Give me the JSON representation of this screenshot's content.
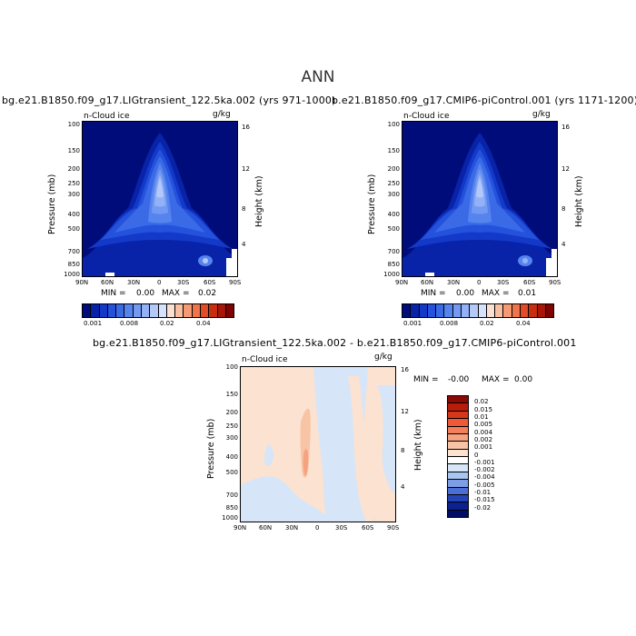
{
  "figure_title": "ANN",
  "panel1": {
    "title": "bg.e21.B1850.f09_g17.LIGtransient_122.5ka.002 (yrs 971-1000)",
    "variable": "n-Cloud ice",
    "units": "g/kg",
    "min_label": "MIN =",
    "min_value": "0.00",
    "max_label": "MAX =",
    "max_value": "0.02",
    "colorbar_labels": [
      "0.001",
      "0.008",
      "0.02",
      "0.04"
    ]
  },
  "panel2": {
    "title": "b.e21.B1850.f09_g17.CMIP6-piControl.001 (yrs 1171-1200)",
    "variable": "n-Cloud ice",
    "units": "g/kg",
    "min_label": "MIN =",
    "min_value": "0.00",
    "max_label": "MAX =",
    "max_value": "0.01",
    "colorbar_labels": [
      "0.001",
      "0.008",
      "0.02",
      "0.04"
    ]
  },
  "panel3": {
    "title": "bg.e21.B1850.f09_g17.LIGtransient_122.5ka.002 - b.e21.B1850.f09_g17.CMIP6-piControl.001",
    "variable": "n-Cloud ice",
    "units": "g/kg",
    "min_label": "MIN =",
    "min_value": "-0.00",
    "max_label": "MAX =",
    "max_value": "0.00",
    "colorbar_labels": [
      "0.02",
      "0.015",
      "0.01",
      "0.005",
      "0.004",
      "0.002",
      "0.001",
      "0",
      "-0.001",
      "-0.002",
      "-0.004",
      "-0.005",
      "-0.01",
      "-0.015",
      "-0.02"
    ]
  },
  "axes": {
    "ylabel_left": "Pressure (mb)",
    "ylabel_right": "Height (km)",
    "pressure_ticks": [
      "100",
      "150",
      "200",
      "250",
      "300",
      "400",
      "500",
      "700",
      "850",
      "1000"
    ],
    "height_ticks": [
      "16",
      "12",
      "8",
      "4"
    ],
    "lat_ticks": [
      "90N",
      "60N",
      "30N",
      "0",
      "30S",
      "60S",
      "90S"
    ]
  },
  "chart_data": [
    {
      "type": "heatmap",
      "title": "bg.e21.B1850.f09_g17.LIGtransient_122.5ka.002 (yrs 971-1000)",
      "variable": "n-Cloud ice (g/kg)",
      "xlabel": "",
      "ylabel": "Pressure (mb)",
      "ylabel_right": "Height (km)",
      "x_ticks": [
        "90N",
        "60N",
        "30N",
        "0",
        "30S",
        "60S",
        "90S"
      ],
      "y_ticks": [
        100,
        150,
        200,
        250,
        300,
        400,
        500,
        700,
        850,
        1000
      ],
      "min": 0.0,
      "max": 0.02,
      "levels": [
        0.001,
        0.002,
        0.003,
        0.004,
        0.005,
        0.006,
        0.007,
        0.008,
        0.01,
        0.012,
        0.015,
        0.02,
        0.025,
        0.03,
        0.035,
        0.04,
        0.045,
        0.05
      ],
      "colors": [
        "#000c7a",
        "#0822a8",
        "#1339c8",
        "#2452dc",
        "#3a6ae6",
        "#5684ee",
        "#7399f2",
        "#92b1f6",
        "#b4c9f8",
        "#d6e1fb",
        "#fbe0d0",
        "#f8bfa0",
        "#f59a72",
        "#f07449",
        "#e04c25",
        "#c82d10",
        "#a81606",
        "#7e0301"
      ],
      "colorbar_labels": [
        "0.001",
        "0.008",
        "0.02",
        "0.04"
      ]
    },
    {
      "type": "heatmap",
      "title": "b.e21.B1850.f09_g17.CMIP6-piControl.001 (yrs 1171-1200)",
      "variable": "n-Cloud ice (g/kg)",
      "xlabel": "",
      "ylabel": "Pressure (mb)",
      "ylabel_right": "Height (km)",
      "x_ticks": [
        "90N",
        "60N",
        "30N",
        "0",
        "30S",
        "60S",
        "90S"
      ],
      "y_ticks": [
        100,
        150,
        200,
        250,
        300,
        400,
        500,
        700,
        850,
        1000
      ],
      "min": 0.0,
      "max": 0.01,
      "levels": [
        0.001,
        0.002,
        0.003,
        0.004,
        0.005,
        0.006,
        0.007,
        0.008,
        0.01,
        0.012,
        0.015,
        0.02,
        0.025,
        0.03,
        0.035,
        0.04,
        0.045,
        0.05
      ],
      "colors": [
        "#000c7a",
        "#0822a8",
        "#1339c8",
        "#2452dc",
        "#3a6ae6",
        "#5684ee",
        "#7399f2",
        "#92b1f6",
        "#b4c9f8",
        "#d6e1fb",
        "#fbe0d0",
        "#f8bfa0",
        "#f59a72",
        "#f07449",
        "#e04c25",
        "#c82d10",
        "#a81606",
        "#7e0301"
      ],
      "colorbar_labels": [
        "0.001",
        "0.008",
        "0.02",
        "0.04"
      ]
    },
    {
      "type": "heatmap",
      "title": "bg.e21.B1850.f09_g17.LIGtransient_122.5ka.002 - b.e21.B1850.f09_g17.CMIP6-piControl.001",
      "variable": "n-Cloud ice (g/kg)",
      "xlabel": "",
      "ylabel": "Pressure (mb)",
      "ylabel_right": "Height (km)",
      "x_ticks": [
        "90N",
        "60N",
        "30N",
        "0",
        "30S",
        "60S",
        "90S"
      ],
      "y_ticks": [
        100,
        150,
        200,
        250,
        300,
        400,
        500,
        700,
        850,
        1000
      ],
      "min": -0.0,
      "max": 0.0,
      "levels": [
        0.02,
        0.015,
        0.01,
        0.005,
        0.004,
        0.002,
        0.001,
        0,
        -0.001,
        -0.002,
        -0.004,
        -0.005,
        -0.01,
        -0.015,
        -0.02
      ],
      "colors": [
        "#8b0a05",
        "#b81d0c",
        "#d8381a",
        "#ee5a35",
        "#f47f5a",
        "#f6a27f",
        "#f8c4a6",
        "#fbe2d1",
        "#ffffff",
        "#d6e6f8",
        "#a9c6f1",
        "#7d9ee6",
        "#4c6ed6",
        "#2444b6",
        "#0a218f",
        "#000c66"
      ],
      "colorbar_labels": [
        "0.02",
        "0.015",
        "0.01",
        "0.005",
        "0.004",
        "0.002",
        "0.001",
        "0",
        "-0.001",
        "-0.002",
        "-0.004",
        "-0.005",
        "-0.01",
        "-0.015",
        "-0.02"
      ]
    }
  ]
}
